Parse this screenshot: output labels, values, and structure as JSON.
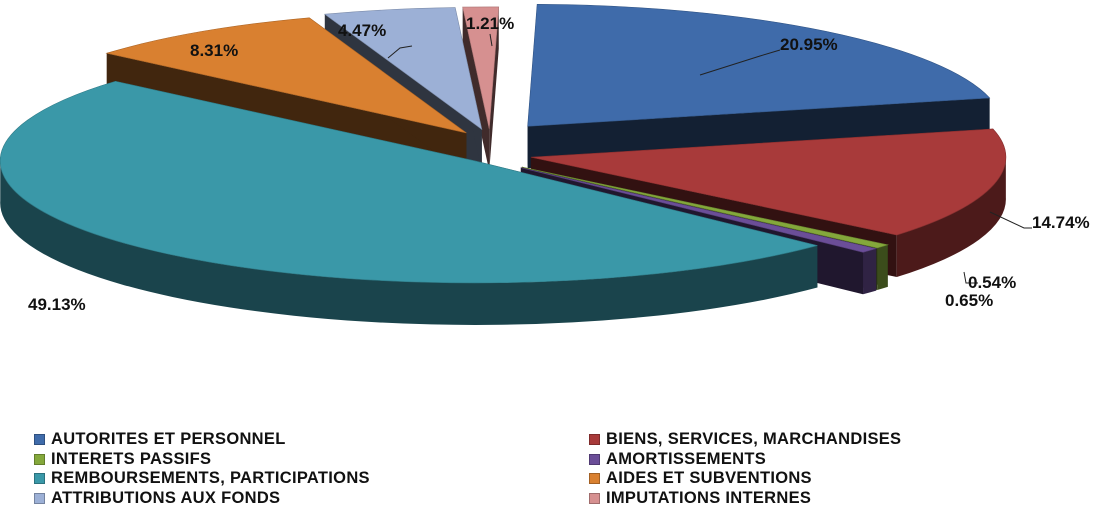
{
  "chart_data": {
    "type": "pie",
    "style": "3d-exploded",
    "slices": [
      {
        "label": "AUTORITES ET PERSONNEL",
        "value": 20.95,
        "display": "20.95%",
        "color": "#3F6BAA"
      },
      {
        "label": "BIENS, SERVICES, MARCHANDISES",
        "value": 14.74,
        "display": "14.74%",
        "color": "#A83A3A"
      },
      {
        "label": "INTERETS PASSIFS",
        "value": 0.54,
        "display": "0.54%",
        "color": "#84A83B"
      },
      {
        "label": "AMORTISSEMENTS",
        "value": 0.65,
        "display": "0.65%",
        "color": "#6B4E98"
      },
      {
        "label": "REMBOURSEMENTS, PARTICIPATIONS",
        "value": 49.13,
        "display": "49.13%",
        "color": "#3A98A8"
      },
      {
        "label": "AIDES ET SUBVENTIONS",
        "value": 8.31,
        "display": "8.31%",
        "color": "#D98030"
      },
      {
        "label": "ATTRIBUTIONS AUX FONDS",
        "value": 4.47,
        "display": "4.47%",
        "color": "#9CB0D6"
      },
      {
        "label": "IMPUTATIONS INTERNES",
        "value": 1.21,
        "display": "1.21%",
        "color": "#D69090"
      }
    ],
    "legend_position": "bottom"
  }
}
